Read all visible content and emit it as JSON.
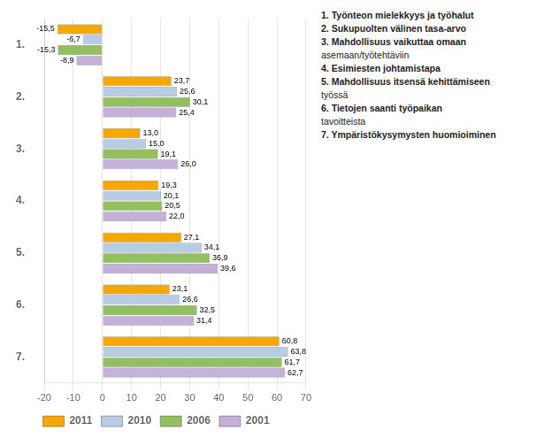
{
  "chart_data": {
    "type": "bar",
    "orientation": "horizontal",
    "categories": [
      "1.",
      "2.",
      "3.",
      "4.",
      "5.",
      "6.",
      "7."
    ],
    "series": [
      {
        "name": "2011",
        "color": "#F5A800",
        "values": [
          -15.5,
          23.7,
          13.0,
          19.3,
          27.1,
          23.1,
          60.8
        ],
        "value_labels": [
          "-15,5",
          "23,7",
          "13,0",
          "19,3",
          "27,1",
          "23,1",
          "60,8"
        ]
      },
      {
        "name": "2010",
        "color": "#B8CCE4",
        "values": [
          -6.7,
          25.6,
          15.0,
          20.1,
          34.1,
          26.6,
          63.8
        ],
        "value_labels": [
          "-6,7",
          "25,6",
          "15,0",
          "20,1",
          "34,1",
          "26,6",
          "63,8"
        ]
      },
      {
        "name": "2006",
        "color": "#92C060",
        "values": [
          -15.3,
          30.1,
          19.1,
          20.5,
          36.9,
          32.5,
          61.7
        ],
        "value_labels": [
          "-15,3",
          "30,1",
          "19,1",
          "20,5",
          "36,9",
          "32,5",
          "61,7"
        ]
      },
      {
        "name": "2001",
        "color": "#C4B0D8",
        "values": [
          -8.9,
          25.4,
          26.0,
          22.0,
          39.6,
          31.4,
          62.7
        ],
        "value_labels": [
          "-8,9",
          "25,4",
          "26,0",
          "22,0",
          "39,6",
          "31,4",
          "62,7"
        ]
      }
    ],
    "xlim": [
      -20,
      70
    ],
    "xticks": [
      -20,
      -10,
      0,
      10,
      20,
      30,
      40,
      50,
      60,
      70
    ],
    "grid": true,
    "legend": "bottom",
    "data_labels": true,
    "annotations": [
      "1. Työnteon mielekkyys ja työhalut",
      "2. Sukupuolten välinen tasa-arvo",
      "3. Mahdollisuus vaikuttaa omaan",
      "asemaan/työtehtäviin",
      "4. Esimiesten johtamistapa",
      "5. Mahdollisuus itsensä kehittämiseen",
      "työssä",
      "6. Tietojen saanti työpaikan",
      "tavoitteista",
      "7. Ympäristökysymysten huomioiminen"
    ]
  }
}
